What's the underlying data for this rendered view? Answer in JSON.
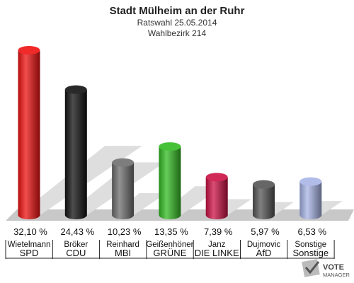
{
  "chart_data": {
    "type": "bar",
    "title": "Stadt Mülheim an der Ruhr",
    "subtitle_1": "Ratswahl 25.05.2014",
    "subtitle_2": "Wahlbezirk 214",
    "categories": [
      "SPD",
      "CDU",
      "MBI",
      "GRÜNE",
      "DIE LINKE",
      "AfD",
      "Sonstige"
    ],
    "candidates": [
      "Wietelmann",
      "Bröker",
      "Reinhard",
      "Geißenhöner",
      "Janz",
      "Dujmovic",
      "Sonstige"
    ],
    "values": [
      32.1,
      24.43,
      10.23,
      13.35,
      7.39,
      5.97,
      6.53
    ],
    "value_labels": [
      "32,10 %",
      "24,43 %",
      "10,23 %",
      "13,35 %",
      "7,39 %",
      "5,97 %",
      "6,53 %"
    ],
    "colors": [
      "#ee1111",
      "#111111",
      "#6e6e6e",
      "#33bb22",
      "#cc1144",
      "#555555",
      "#a8b4e6"
    ],
    "ylim": [
      0,
      32.1
    ]
  },
  "logo": {
    "line1": "VOTE",
    "line2": "MANAGER"
  }
}
